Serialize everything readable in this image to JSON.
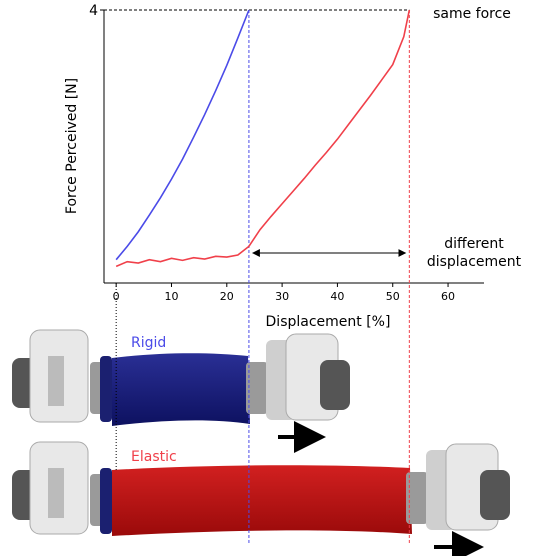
{
  "chart_data": {
    "type": "line",
    "x_label": "Displacement [%]",
    "y_label": "Force Perceived [N]",
    "xlim": [
      -2.2,
      66.5
    ],
    "xticks": [
      0,
      10,
      20,
      30,
      40,
      50,
      60
    ],
    "ylim": [
      -0.1,
      4
    ],
    "yticks": [
      4
    ],
    "annotations": {
      "same_force": "same force",
      "different_displacement": [
        "different",
        "displacement"
      ]
    },
    "series": [
      {
        "name": "Rigid",
        "color": "#4b4be8",
        "x": [
          0,
          2,
          4,
          6,
          8,
          10,
          12,
          14,
          16,
          18,
          20,
          22,
          24
        ],
        "values": [
          0.25,
          0.45,
          0.67,
          0.92,
          1.18,
          1.46,
          1.76,
          2.09,
          2.43,
          2.79,
          3.17,
          3.58,
          4.0
        ]
      },
      {
        "name": "Elastic",
        "color": "#f0404a",
        "x": [
          0,
          2,
          4,
          6,
          8,
          10,
          12,
          14,
          16,
          18,
          20,
          22,
          24,
          26,
          28,
          30,
          32,
          34,
          36,
          38,
          40,
          42,
          44,
          46,
          48,
          50,
          52,
          53
        ],
        "values": [
          0.15,
          0.22,
          0.2,
          0.25,
          0.22,
          0.27,
          0.24,
          0.28,
          0.26,
          0.3,
          0.29,
          0.32,
          0.45,
          0.7,
          0.9,
          1.09,
          1.28,
          1.47,
          1.67,
          1.86,
          2.06,
          2.28,
          2.5,
          2.72,
          2.95,
          3.18,
          3.6,
          4.0
        ]
      }
    ]
  }
}
